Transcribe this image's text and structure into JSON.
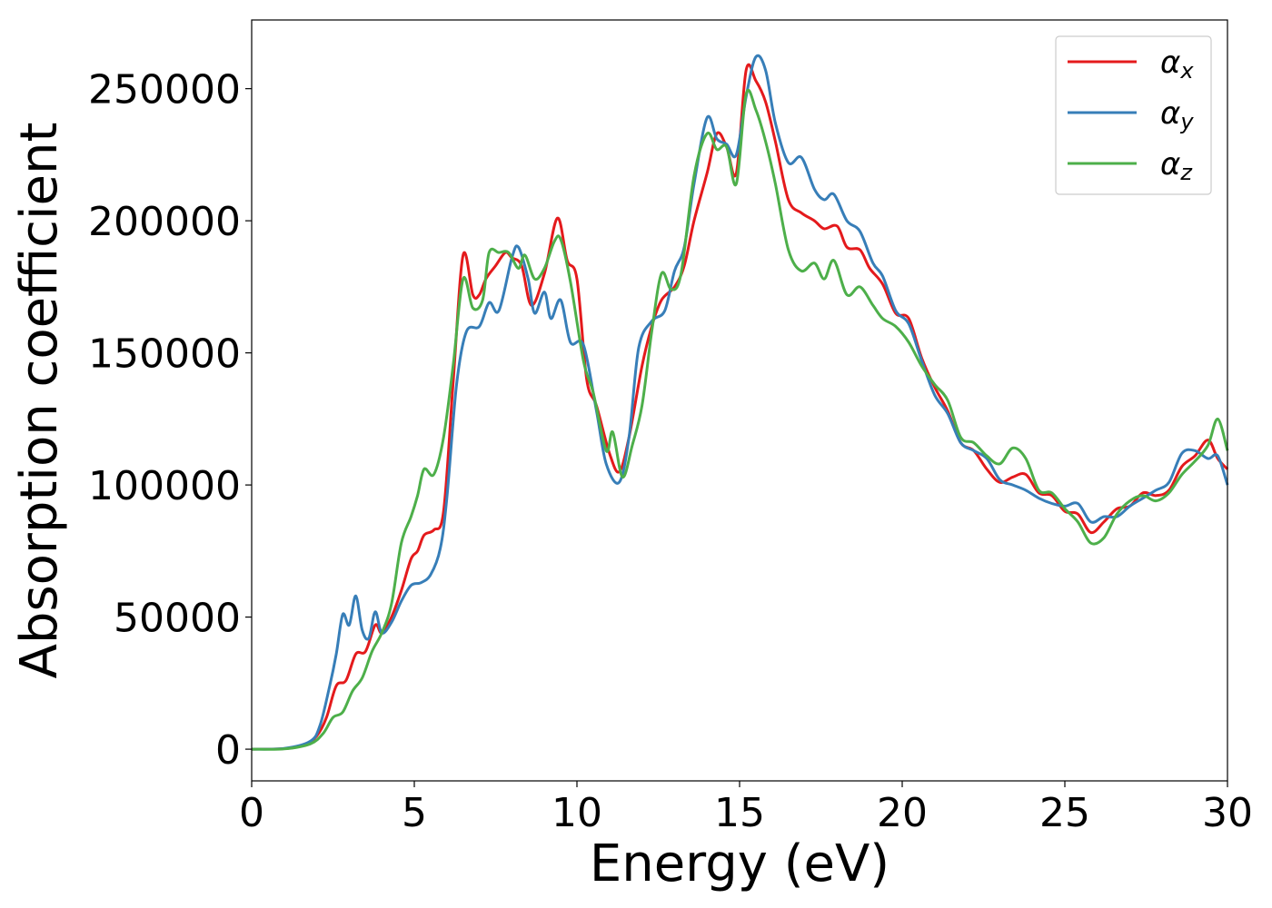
{
  "chart_data": {
    "type": "line",
    "title": "",
    "xlabel": "Energy (eV)",
    "ylabel": "Absorption coefficient",
    "xlim": [
      0,
      30
    ],
    "ylim": [
      -12000,
      276000
    ],
    "xticks": [
      0,
      5,
      10,
      15,
      20,
      25,
      30
    ],
    "xtick_labels": [
      "0",
      "5",
      "10",
      "15",
      "20",
      "25",
      "30"
    ],
    "yticks": [
      0,
      50000,
      100000,
      150000,
      200000,
      250000
    ],
    "ytick_labels": [
      "0",
      "50000",
      "100000",
      "150000",
      "200000",
      "250000"
    ],
    "grid": false,
    "legend_position": "top-right",
    "series": [
      {
        "name": "α",
        "subscript": "x",
        "color": "#e41a1c",
        "points": [
          [
            0,
            0
          ],
          [
            1,
            200
          ],
          [
            1.6,
            1500
          ],
          [
            2,
            5000
          ],
          [
            2.3,
            12000
          ],
          [
            2.6,
            24000
          ],
          [
            2.9,
            26000
          ],
          [
            3.2,
            36000
          ],
          [
            3.5,
            37000
          ],
          [
            3.8,
            47000
          ],
          [
            4,
            44000
          ],
          [
            4.3,
            50000
          ],
          [
            4.6,
            60000
          ],
          [
            4.9,
            72000
          ],
          [
            5.1,
            75000
          ],
          [
            5.3,
            81000
          ],
          [
            5.6,
            83000
          ],
          [
            5.9,
            90000
          ],
          [
            6.2,
            140000
          ],
          [
            6.5,
            187000
          ],
          [
            6.8,
            172000
          ],
          [
            7,
            172000
          ],
          [
            7.2,
            178000
          ],
          [
            7.5,
            183000
          ],
          [
            7.8,
            188000
          ],
          [
            8,
            186000
          ],
          [
            8.3,
            183000
          ],
          [
            8.6,
            168000
          ],
          [
            9,
            180000
          ],
          [
            9.4,
            201000
          ],
          [
            9.7,
            185000
          ],
          [
            10,
            178000
          ],
          [
            10.3,
            140000
          ],
          [
            10.6,
            130000
          ],
          [
            11,
            112000
          ],
          [
            11.3,
            105000
          ],
          [
            11.6,
            118000
          ],
          [
            12,
            145000
          ],
          [
            12.3,
            160000
          ],
          [
            12.6,
            170000
          ],
          [
            13,
            175000
          ],
          [
            13.3,
            183000
          ],
          [
            13.6,
            200000
          ],
          [
            14,
            218000
          ],
          [
            14.3,
            233000
          ],
          [
            14.6,
            228000
          ],
          [
            14.9,
            218000
          ],
          [
            15.2,
            257000
          ],
          [
            15.5,
            253000
          ],
          [
            15.8,
            245000
          ],
          [
            16.1,
            230000
          ],
          [
            16.5,
            208000
          ],
          [
            16.9,
            203000
          ],
          [
            17.3,
            200000
          ],
          [
            17.6,
            197000
          ],
          [
            18,
            198000
          ],
          [
            18.3,
            190000
          ],
          [
            18.7,
            189000
          ],
          [
            19,
            182000
          ],
          [
            19.4,
            176000
          ],
          [
            19.8,
            165000
          ],
          [
            20.2,
            163000
          ],
          [
            20.6,
            148000
          ],
          [
            21,
            137000
          ],
          [
            21.4,
            128000
          ],
          [
            21.8,
            116000
          ],
          [
            22.2,
            113000
          ],
          [
            22.6,
            106000
          ],
          [
            23,
            101000
          ],
          [
            23.4,
            103000
          ],
          [
            23.8,
            104000
          ],
          [
            24.2,
            97000
          ],
          [
            24.6,
            96000
          ],
          [
            25,
            90000
          ],
          [
            25.4,
            89000
          ],
          [
            25.8,
            82000
          ],
          [
            26.2,
            86000
          ],
          [
            26.6,
            91000
          ],
          [
            27,
            92000
          ],
          [
            27.4,
            97000
          ],
          [
            27.8,
            96000
          ],
          [
            28.2,
            98000
          ],
          [
            28.6,
            107000
          ],
          [
            29,
            111000
          ],
          [
            29.4,
            117000
          ],
          [
            29.7,
            110000
          ],
          [
            30,
            106000
          ]
        ]
      },
      {
        "name": "α",
        "subscript": "y",
        "color": "#377eb8",
        "points": [
          [
            0,
            0
          ],
          [
            1,
            300
          ],
          [
            1.8,
            3000
          ],
          [
            2.1,
            9000
          ],
          [
            2.4,
            24000
          ],
          [
            2.6,
            36000
          ],
          [
            2.8,
            51000
          ],
          [
            3,
            47000
          ],
          [
            3.2,
            58000
          ],
          [
            3.4,
            45000
          ],
          [
            3.6,
            42000
          ],
          [
            3.8,
            52000
          ],
          [
            4,
            44000
          ],
          [
            4.3,
            48000
          ],
          [
            4.6,
            56000
          ],
          [
            4.9,
            62000
          ],
          [
            5.2,
            63000
          ],
          [
            5.5,
            66000
          ],
          [
            5.8,
            76000
          ],
          [
            6,
            95000
          ],
          [
            6.3,
            138000
          ],
          [
            6.6,
            158000
          ],
          [
            7,
            160000
          ],
          [
            7.3,
            169000
          ],
          [
            7.6,
            166000
          ],
          [
            8,
            186000
          ],
          [
            8.2,
            190000
          ],
          [
            8.5,
            178000
          ],
          [
            8.7,
            165000
          ],
          [
            9,
            173000
          ],
          [
            9.2,
            163000
          ],
          [
            9.5,
            170000
          ],
          [
            9.8,
            154000
          ],
          [
            10.2,
            153000
          ],
          [
            10.6,
            128000
          ],
          [
            10.9,
            108000
          ],
          [
            11.3,
            101000
          ],
          [
            11.6,
            118000
          ],
          [
            11.9,
            152000
          ],
          [
            12.3,
            162000
          ],
          [
            12.7,
            166000
          ],
          [
            13,
            181000
          ],
          [
            13.3,
            190000
          ],
          [
            13.6,
            214000
          ],
          [
            14,
            239000
          ],
          [
            14.3,
            231000
          ],
          [
            14.6,
            229000
          ],
          [
            14.9,
            225000
          ],
          [
            15.2,
            247000
          ],
          [
            15.5,
            262000
          ],
          [
            15.8,
            257000
          ],
          [
            16.1,
            237000
          ],
          [
            16.5,
            222000
          ],
          [
            16.9,
            224000
          ],
          [
            17.3,
            212000
          ],
          [
            17.6,
            208000
          ],
          [
            17.9,
            210000
          ],
          [
            18.3,
            200000
          ],
          [
            18.7,
            196000
          ],
          [
            19.1,
            184000
          ],
          [
            19.4,
            179000
          ],
          [
            19.8,
            166000
          ],
          [
            20.2,
            161000
          ],
          [
            20.6,
            147000
          ],
          [
            21,
            134000
          ],
          [
            21.4,
            127000
          ],
          [
            21.8,
            116000
          ],
          [
            22.2,
            113000
          ],
          [
            22.6,
            110000
          ],
          [
            23,
            102000
          ],
          [
            23.4,
            100000
          ],
          [
            23.8,
            98000
          ],
          [
            24.2,
            95000
          ],
          [
            24.6,
            93000
          ],
          [
            25,
            92000
          ],
          [
            25.4,
            93000
          ],
          [
            25.8,
            86000
          ],
          [
            26.2,
            88000
          ],
          [
            26.6,
            88000
          ],
          [
            27,
            92000
          ],
          [
            27.4,
            95000
          ],
          [
            27.8,
            98000
          ],
          [
            28.2,
            101000
          ],
          [
            28.6,
            112000
          ],
          [
            29,
            113000
          ],
          [
            29.4,
            110000
          ],
          [
            29.7,
            111000
          ],
          [
            30,
            100000
          ]
        ]
      },
      {
        "name": "α",
        "subscript": "z",
        "color": "#4daf4a",
        "points": [
          [
            0,
            0
          ],
          [
            1,
            100
          ],
          [
            1.8,
            2000
          ],
          [
            2.2,
            6000
          ],
          [
            2.5,
            12000
          ],
          [
            2.8,
            14000
          ],
          [
            3.1,
            22000
          ],
          [
            3.4,
            27000
          ],
          [
            3.7,
            37000
          ],
          [
            4,
            44000
          ],
          [
            4.3,
            55000
          ],
          [
            4.6,
            78000
          ],
          [
            4.9,
            88000
          ],
          [
            5.1,
            96000
          ],
          [
            5.3,
            106000
          ],
          [
            5.6,
            104000
          ],
          [
            5.9,
            118000
          ],
          [
            6.2,
            146000
          ],
          [
            6.5,
            178000
          ],
          [
            6.8,
            167000
          ],
          [
            7.1,
            170000
          ],
          [
            7.3,
            188000
          ],
          [
            7.6,
            188000
          ],
          [
            7.9,
            188000
          ],
          [
            8.2,
            182000
          ],
          [
            8.4,
            187000
          ],
          [
            8.7,
            178000
          ],
          [
            9,
            182000
          ],
          [
            9.3,
            192000
          ],
          [
            9.5,
            193000
          ],
          [
            9.8,
            177000
          ],
          [
            10.2,
            147000
          ],
          [
            10.5,
            135000
          ],
          [
            10.9,
            113000
          ],
          [
            11.1,
            120000
          ],
          [
            11.4,
            103000
          ],
          [
            11.7,
            115000
          ],
          [
            12,
            130000
          ],
          [
            12.3,
            158000
          ],
          [
            12.6,
            180000
          ],
          [
            12.9,
            174000
          ],
          [
            13.2,
            180000
          ],
          [
            13.6,
            217000
          ],
          [
            14,
            233000
          ],
          [
            14.3,
            227000
          ],
          [
            14.6,
            228000
          ],
          [
            14.9,
            214000
          ],
          [
            15.2,
            248000
          ],
          [
            15.5,
            242000
          ],
          [
            15.8,
            230000
          ],
          [
            16.1,
            214000
          ],
          [
            16.5,
            189000
          ],
          [
            16.9,
            181000
          ],
          [
            17.3,
            184000
          ],
          [
            17.6,
            178000
          ],
          [
            17.9,
            185000
          ],
          [
            18.3,
            172000
          ],
          [
            18.7,
            175000
          ],
          [
            19.1,
            168000
          ],
          [
            19.4,
            163000
          ],
          [
            19.8,
            160000
          ],
          [
            20.2,
            154000
          ],
          [
            20.6,
            145000
          ],
          [
            21,
            138000
          ],
          [
            21.4,
            132000
          ],
          [
            21.8,
            118000
          ],
          [
            22.2,
            116000
          ],
          [
            22.6,
            111000
          ],
          [
            23,
            108000
          ],
          [
            23.4,
            114000
          ],
          [
            23.8,
            110000
          ],
          [
            24.2,
            98000
          ],
          [
            24.6,
            97000
          ],
          [
            25,
            91000
          ],
          [
            25.4,
            86000
          ],
          [
            25.8,
            78000
          ],
          [
            26.2,
            80000
          ],
          [
            26.6,
            89000
          ],
          [
            27,
            94000
          ],
          [
            27.4,
            96000
          ],
          [
            27.8,
            94000
          ],
          [
            28.2,
            97000
          ],
          [
            28.6,
            104000
          ],
          [
            29,
            109000
          ],
          [
            29.4,
            115000
          ],
          [
            29.7,
            125000
          ],
          [
            30,
            113000
          ]
        ]
      }
    ]
  }
}
